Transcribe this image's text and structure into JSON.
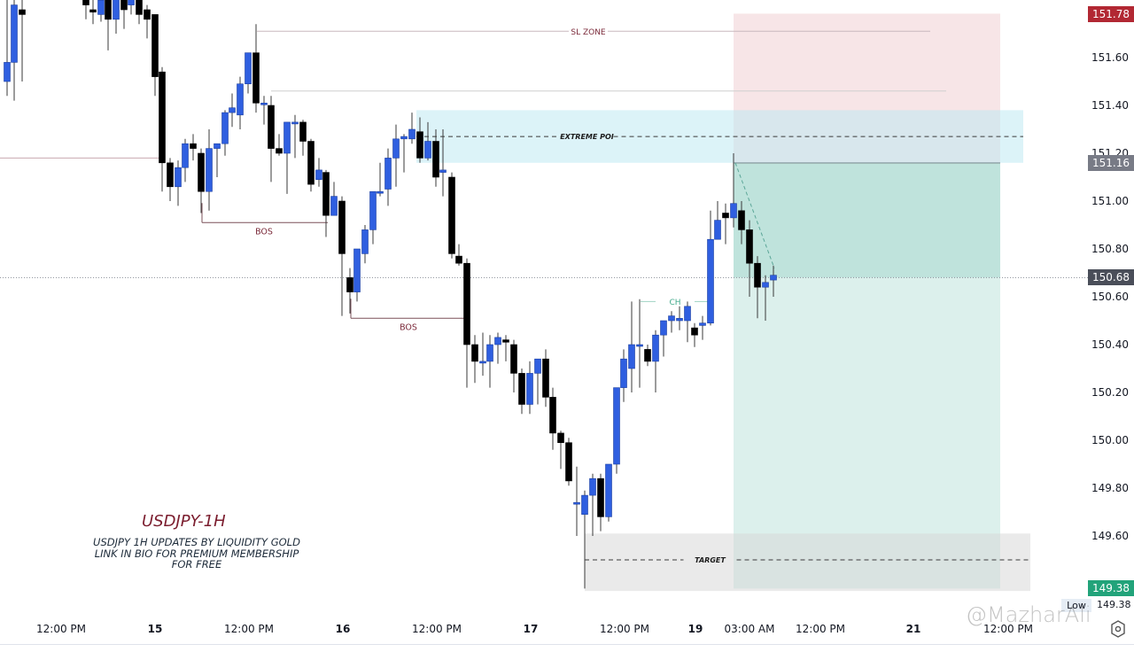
{
  "chart_data": {
    "type": "candlestick",
    "symbol": "USDJPY",
    "timeframe": "1H",
    "title": "USDJPY-1H",
    "subtitle_lines": [
      "USDJPY 1H UPDATES BY LIQUIDITY GOLD",
      "LINK IN BIO FOR PREMIUM MEMBERSHIP",
      "FOR FREE"
    ],
    "y_ticks": [
      "151.60",
      "151.40",
      "151.20",
      "151.00",
      "150.80",
      "150.60",
      "150.40",
      "150.20",
      "150.00",
      "149.80",
      "149.60"
    ],
    "ylim": [
      149.35,
      151.82
    ],
    "x_ticks": [
      {
        "label": "12:00 PM",
        "x": 69,
        "bold": false
      },
      {
        "label": "15",
        "x": 175,
        "bold": true
      },
      {
        "label": "12:00 PM",
        "x": 281,
        "bold": false
      },
      {
        "label": "16",
        "x": 387,
        "bold": true
      },
      {
        "label": "12:00 PM",
        "x": 493,
        "bold": false
      },
      {
        "label": "17",
        "x": 599,
        "bold": true
      },
      {
        "label": "12:00 PM",
        "x": 705,
        "bold": false
      },
      {
        "label": "19",
        "x": 785,
        "bold": true
      },
      {
        "label": "03:00 AM",
        "x": 846,
        "bold": false
      },
      {
        "label": "12:00 PM",
        "x": 926,
        "bold": false
      },
      {
        "label": "21",
        "x": 1031,
        "bold": true
      },
      {
        "label": "12:00 PM",
        "x": 1138,
        "bold": false
      }
    ],
    "price_tags": [
      {
        "label": "151.78",
        "price": 151.78,
        "color": "#b22833"
      },
      {
        "label": "151.16",
        "price": 151.16,
        "color": "#787b86"
      },
      {
        "label": "150.68",
        "price": 150.68,
        "color": "#4a4e59"
      },
      {
        "label": "149.38",
        "price": 149.38,
        "color": "#22a37a"
      }
    ],
    "low": {
      "label": "Low",
      "value": "149.38"
    },
    "colors": {
      "up": "#2f5fe0",
      "down": "#000000",
      "wick": "#3a3a3a"
    },
    "candles": [
      {
        "x": 8,
        "o": 151.5,
        "h": 151.88,
        "l": 151.44,
        "c": 151.58
      },
      {
        "x": 16,
        "o": 151.58,
        "h": 151.88,
        "l": 151.42,
        "c": 151.82
      },
      {
        "x": 25,
        "o": 151.8,
        "h": 151.88,
        "l": 151.5,
        "c": 151.78
      },
      {
        "x": 97,
        "o": 151.9,
        "h": 151.98,
        "l": 151.76,
        "c": 151.82
      },
      {
        "x": 105,
        "o": 151.8,
        "h": 151.9,
        "l": 151.74,
        "c": 151.79
      },
      {
        "x": 114,
        "o": 151.78,
        "h": 151.88,
        "l": 151.75,
        "c": 151.84
      },
      {
        "x": 122,
        "o": 151.84,
        "h": 151.86,
        "l": 151.63,
        "c": 151.76
      },
      {
        "x": 131,
        "o": 151.76,
        "h": 151.92,
        "l": 151.7,
        "c": 151.92
      },
      {
        "x": 140,
        "o": 151.94,
        "h": 151.98,
        "l": 151.72,
        "c": 151.8
      },
      {
        "x": 148,
        "o": 151.82,
        "h": 151.9,
        "l": 151.78,
        "c": 151.88
      },
      {
        "x": 157,
        "o": 151.88,
        "h": 151.9,
        "l": 151.74,
        "c": 151.78
      },
      {
        "x": 166,
        "o": 151.8,
        "h": 151.82,
        "l": 151.68,
        "c": 151.76
      },
      {
        "x": 175,
        "o": 151.78,
        "h": 151.66,
        "l": 151.44,
        "c": 151.52
      },
      {
        "x": 183,
        "o": 151.54,
        "h": 151.56,
        "l": 151.04,
        "c": 151.16
      },
      {
        "x": 192,
        "o": 151.16,
        "h": 151.18,
        "l": 151.0,
        "c": 151.06
      },
      {
        "x": 201,
        "o": 151.06,
        "h": 151.17,
        "l": 150.98,
        "c": 151.14
      },
      {
        "x": 209,
        "o": 151.14,
        "h": 151.26,
        "l": 151.08,
        "c": 151.24
      },
      {
        "x": 218,
        "o": 151.24,
        "h": 151.28,
        "l": 151.17,
        "c": 151.22
      },
      {
        "x": 227,
        "o": 151.2,
        "h": 151.22,
        "l": 150.95,
        "c": 151.04
      },
      {
        "x": 236,
        "o": 151.04,
        "h": 151.3,
        "l": 150.96,
        "c": 151.22
      },
      {
        "x": 245,
        "o": 151.22,
        "h": 151.24,
        "l": 151.1,
        "c": 151.24
      },
      {
        "x": 254,
        "o": 151.24,
        "h": 151.38,
        "l": 151.19,
        "c": 151.37
      },
      {
        "x": 262,
        "o": 151.37,
        "h": 151.45,
        "l": 151.31,
        "c": 151.39
      },
      {
        "x": 271,
        "o": 151.36,
        "h": 151.52,
        "l": 151.3,
        "c": 151.49
      },
      {
        "x": 280,
        "o": 151.49,
        "h": 151.61,
        "l": 151.45,
        "c": 151.62
      },
      {
        "x": 289,
        "o": 151.62,
        "h": 151.74,
        "l": 151.37,
        "c": 151.41
      },
      {
        "x": 298,
        "o": 151.41,
        "h": 151.44,
        "l": 151.32,
        "c": 151.41
      },
      {
        "x": 306,
        "o": 151.4,
        "h": 151.44,
        "l": 151.08,
        "c": 151.22
      },
      {
        "x": 315,
        "o": 151.22,
        "h": 151.28,
        "l": 151.19,
        "c": 151.2
      },
      {
        "x": 324,
        "o": 151.2,
        "h": 151.33,
        "l": 151.03,
        "c": 151.33
      },
      {
        "x": 333,
        "o": 151.33,
        "h": 151.36,
        "l": 151.18,
        "c": 151.33
      },
      {
        "x": 342,
        "o": 151.33,
        "h": 151.34,
        "l": 151.19,
        "c": 151.25
      },
      {
        "x": 351,
        "o": 151.25,
        "h": 151.26,
        "l": 151.04,
        "c": 151.07
      },
      {
        "x": 360,
        "o": 151.09,
        "h": 151.18,
        "l": 151.06,
        "c": 151.13
      },
      {
        "x": 368,
        "o": 151.12,
        "h": 151.13,
        "l": 150.85,
        "c": 150.94
      },
      {
        "x": 377,
        "o": 150.94,
        "h": 151.08,
        "l": 150.94,
        "c": 151.02
      },
      {
        "x": 386,
        "o": 151.0,
        "h": 151.02,
        "l": 150.52,
        "c": 150.78
      },
      {
        "x": 395,
        "o": 150.68,
        "h": 150.72,
        "l": 150.53,
        "c": 150.62
      },
      {
        "x": 403,
        "o": 150.62,
        "h": 150.8,
        "l": 150.58,
        "c": 150.8
      },
      {
        "x": 412,
        "o": 150.78,
        "h": 150.9,
        "l": 150.74,
        "c": 150.88
      },
      {
        "x": 421,
        "o": 150.88,
        "h": 151.0,
        "l": 150.82,
        "c": 151.04
      },
      {
        "x": 429,
        "o": 151.04,
        "h": 151.16,
        "l": 151.02,
        "c": 151.04
      },
      {
        "x": 438,
        "o": 151.05,
        "h": 151.22,
        "l": 150.98,
        "c": 151.18
      },
      {
        "x": 447,
        "o": 151.18,
        "h": 151.32,
        "l": 151.06,
        "c": 151.26
      },
      {
        "x": 456,
        "o": 151.26,
        "h": 151.28,
        "l": 151.12,
        "c": 151.27
      },
      {
        "x": 465,
        "o": 151.26,
        "h": 151.37,
        "l": 151.24,
        "c": 151.3
      },
      {
        "x": 474,
        "o": 151.29,
        "h": 151.35,
        "l": 151.16,
        "c": 151.18
      },
      {
        "x": 483,
        "o": 151.18,
        "h": 151.33,
        "l": 151.17,
        "c": 151.25
      },
      {
        "x": 492,
        "o": 151.25,
        "h": 151.3,
        "l": 151.06,
        "c": 151.1
      },
      {
        "x": 500,
        "o": 151.12,
        "h": 151.3,
        "l": 151.02,
        "c": 151.13
      },
      {
        "x": 510,
        "o": 151.1,
        "h": 151.12,
        "l": 150.76,
        "c": 150.78
      },
      {
        "x": 518,
        "o": 150.77,
        "h": 150.82,
        "l": 150.73,
        "c": 150.74
      },
      {
        "x": 527,
        "o": 150.74,
        "h": 150.76,
        "l": 150.22,
        "c": 150.4
      },
      {
        "x": 536,
        "o": 150.4,
        "h": 150.44,
        "l": 150.24,
        "c": 150.33
      },
      {
        "x": 545,
        "o": 150.33,
        "h": 150.45,
        "l": 150.27,
        "c": 150.33
      },
      {
        "x": 553,
        "o": 150.33,
        "h": 150.44,
        "l": 150.22,
        "c": 150.4
      },
      {
        "x": 562,
        "o": 150.4,
        "h": 150.45,
        "l": 150.32,
        "c": 150.43
      },
      {
        "x": 571,
        "o": 150.42,
        "h": 150.44,
        "l": 150.33,
        "c": 150.41
      },
      {
        "x": 580,
        "o": 150.4,
        "h": 150.42,
        "l": 150.2,
        "c": 150.28
      },
      {
        "x": 589,
        "o": 150.28,
        "h": 150.3,
        "l": 150.11,
        "c": 150.15
      },
      {
        "x": 598,
        "o": 150.15,
        "h": 150.33,
        "l": 150.11,
        "c": 150.28
      },
      {
        "x": 607,
        "o": 150.28,
        "h": 150.33,
        "l": 150.15,
        "c": 150.34
      },
      {
        "x": 616,
        "o": 150.34,
        "h": 150.38,
        "l": 150.14,
        "c": 150.18
      },
      {
        "x": 624,
        "o": 150.18,
        "h": 150.22,
        "l": 149.96,
        "c": 150.03
      },
      {
        "x": 633,
        "o": 150.03,
        "h": 150.04,
        "l": 149.88,
        "c": 149.99
      },
      {
        "x": 642,
        "o": 149.99,
        "h": 150.01,
        "l": 149.81,
        "c": 149.83
      },
      {
        "x": 651,
        "o": 149.74,
        "h": 149.89,
        "l": 149.6,
        "c": 149.74
      },
      {
        "x": 660,
        "o": 149.69,
        "h": 149.79,
        "l": 149.38,
        "c": 149.77
      },
      {
        "x": 669,
        "o": 149.77,
        "h": 149.86,
        "l": 149.6,
        "c": 149.84
      },
      {
        "x": 678,
        "o": 149.84,
        "h": 149.86,
        "l": 149.62,
        "c": 149.68
      },
      {
        "x": 687,
        "o": 149.68,
        "h": 149.9,
        "l": 149.66,
        "c": 149.9
      },
      {
        "x": 696,
        "o": 149.9,
        "h": 150.2,
        "l": 149.86,
        "c": 150.22
      },
      {
        "x": 704,
        "o": 150.22,
        "h": 150.38,
        "l": 150.16,
        "c": 150.34
      },
      {
        "x": 713,
        "o": 150.3,
        "h": 150.58,
        "l": 150.2,
        "c": 150.4
      },
      {
        "x": 722,
        "o": 150.4,
        "h": 150.59,
        "l": 150.22,
        "c": 150.4
      },
      {
        "x": 731,
        "o": 150.38,
        "h": 150.4,
        "l": 150.31,
        "c": 150.33
      },
      {
        "x": 740,
        "o": 150.33,
        "h": 150.46,
        "l": 150.2,
        "c": 150.44
      },
      {
        "x": 749,
        "o": 150.44,
        "h": 150.49,
        "l": 150.35,
        "c": 150.5
      },
      {
        "x": 758,
        "o": 150.5,
        "h": 150.54,
        "l": 150.45,
        "c": 150.52
      },
      {
        "x": 767,
        "o": 150.5,
        "h": 150.56,
        "l": 150.46,
        "c": 150.51
      },
      {
        "x": 776,
        "o": 150.5,
        "h": 150.58,
        "l": 150.41,
        "c": 150.56
      },
      {
        "x": 784,
        "o": 150.47,
        "h": 150.49,
        "l": 150.39,
        "c": 150.44
      },
      {
        "x": 793,
        "o": 150.48,
        "h": 150.52,
        "l": 150.42,
        "c": 150.49
      },
      {
        "x": 802,
        "o": 150.49,
        "h": 150.96,
        "l": 150.48,
        "c": 150.84
      },
      {
        "x": 810,
        "o": 150.84,
        "h": 151.0,
        "l": 150.84,
        "c": 150.92
      },
      {
        "x": 819,
        "o": 150.95,
        "h": 150.99,
        "l": 150.82,
        "c": 150.93
      },
      {
        "x": 828,
        "o": 150.93,
        "h": 151.2,
        "l": 150.89,
        "c": 150.99
      },
      {
        "x": 837,
        "o": 150.96,
        "h": 151.0,
        "l": 150.82,
        "c": 150.88
      },
      {
        "x": 846,
        "o": 150.88,
        "h": 150.92,
        "l": 150.6,
        "c": 150.74
      },
      {
        "x": 855,
        "o": 150.74,
        "h": 150.77,
        "l": 150.51,
        "c": 150.64
      },
      {
        "x": 864,
        "o": 150.64,
        "h": 150.69,
        "l": 150.5,
        "c": 150.66
      },
      {
        "x": 873,
        "o": 150.67,
        "h": 150.73,
        "l": 150.6,
        "c": 150.69
      }
    ],
    "annotations": [
      {
        "type": "line",
        "label": "SL ZONE",
        "price": 151.71,
        "x1": 290,
        "x2": 1050
      },
      {
        "type": "line",
        "label": "",
        "price": 151.46,
        "x1": 306,
        "x2": 1068
      },
      {
        "type": "line",
        "label": "",
        "price": 151.18,
        "x1": 0,
        "x2": 186
      },
      {
        "type": "bracket",
        "label": "BOS",
        "price": 150.91,
        "x1": 228,
        "x2": 370,
        "label_x": 298
      },
      {
        "type": "bracket",
        "label": "BOS",
        "price": 150.51,
        "x1": 396,
        "x2": 525,
        "label_x": 461
      },
      {
        "type": "line",
        "label": "CH",
        "price": 150.58,
        "x1": 723,
        "x2": 800,
        "label_x": 762
      },
      {
        "type": "zone",
        "label": "EXTREME POI",
        "top": 151.38,
        "bottom": 151.16,
        "x1": 470,
        "x2": 1155,
        "mid": 151.27
      },
      {
        "type": "zone",
        "label": "TARGET",
        "top": 149.61,
        "bottom": 149.37,
        "x1": 660,
        "x2": 1163,
        "mid": 149.5
      }
    ],
    "position": {
      "type": "short",
      "x1": 828,
      "x2": 1129,
      "stop": 151.78,
      "entry": 151.16,
      "current": 150.68,
      "target": 149.38
    }
  },
  "watermark": "@MazharAli"
}
